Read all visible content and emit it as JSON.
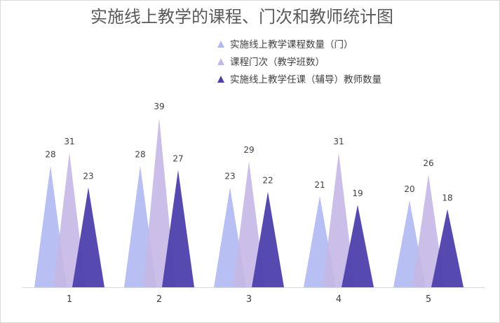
{
  "chart_data": {
    "type": "bar",
    "bar_shape": "triangle",
    "title": "实施线上教学的课程、门次和教师统计图",
    "xlabel": "",
    "ylabel": "",
    "categories": [
      "1",
      "2",
      "3",
      "4",
      "5"
    ],
    "series": [
      {
        "name": "实施线上教学课程数量（门）",
        "values": [
          28,
          28,
          23,
          21,
          20
        ],
        "color": "#b0b8f2"
      },
      {
        "name": "课程门次（教学班数）",
        "values": [
          31,
          39,
          29,
          31,
          26
        ],
        "color": "#c5b7e6"
      },
      {
        "name": "实施线上教学任课（辅导）教师数量",
        "values": [
          23,
          27,
          22,
          19,
          18
        ],
        "color": "#4d40ad"
      }
    ],
    "ylim": [
      0,
      40
    ],
    "grid": false,
    "legend_position": "top-right",
    "data_labels": true
  }
}
